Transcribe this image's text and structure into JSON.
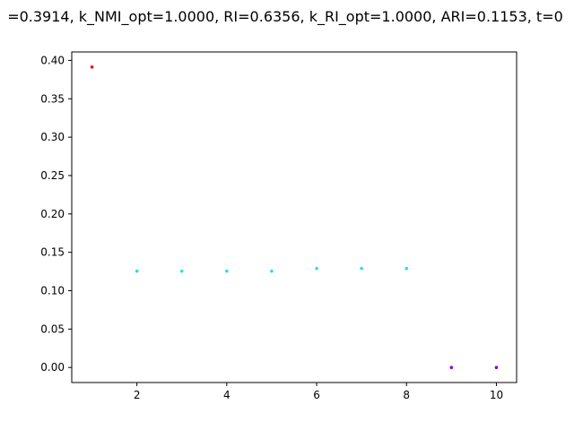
{
  "chart_data": {
    "type": "scatter",
    "title": "=0.3914, k_NMI_opt=1.0000, RI=0.6356, k_RI_opt=1.0000, ARI=0.1153, t=0",
    "xlabel": "",
    "ylabel": "",
    "xlim": [
      0.55,
      10.45
    ],
    "ylim": [
      -0.0196,
      0.411
    ],
    "xticks": [
      2,
      4,
      6,
      8,
      10
    ],
    "yticks": [
      0.0,
      0.05,
      0.1,
      0.15,
      0.2,
      0.25,
      0.3,
      0.35,
      0.4
    ],
    "grid": false,
    "legend": "none",
    "points": [
      {
        "x": 1,
        "y": 0.3914,
        "color": "#ff0000"
      },
      {
        "x": 2,
        "y": 0.1255,
        "color": "#29e0e0"
      },
      {
        "x": 3,
        "y": 0.1255,
        "color": "#29e0e0"
      },
      {
        "x": 4,
        "y": 0.1255,
        "color": "#29e0e0"
      },
      {
        "x": 5,
        "y": 0.1255,
        "color": "#29e0e0"
      },
      {
        "x": 6,
        "y": 0.129,
        "color": "#29e0e0"
      },
      {
        "x": 7,
        "y": 0.129,
        "color": "#29e0e0"
      },
      {
        "x": 8,
        "y": 0.129,
        "color": "#29e0e0"
      },
      {
        "x": 9,
        "y": 0.0,
        "color": "#8000ff"
      },
      {
        "x": 10,
        "y": 0.0,
        "color": "#8000ff"
      }
    ]
  }
}
